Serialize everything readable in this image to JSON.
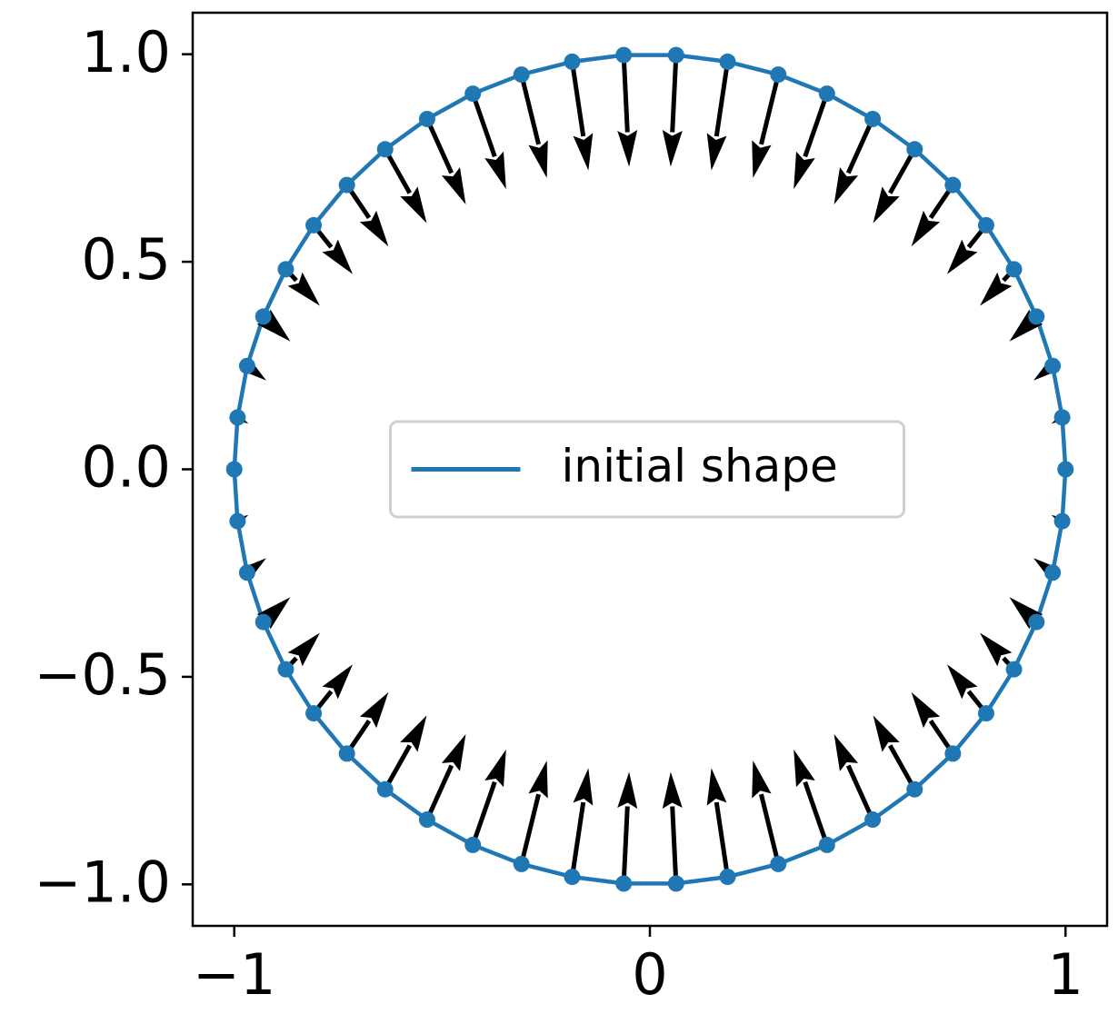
{
  "chart_data": {
    "type": "quiver",
    "series": [
      {
        "name": "initial shape",
        "color": "#1f77b4",
        "x": [
          1,
          0.992,
          0.969,
          0.93,
          0.876,
          0.809,
          0.729,
          0.637,
          0.536,
          0.426,
          0.309,
          0.187,
          0.063,
          -0.063,
          -0.187,
          -0.309,
          -0.426,
          -0.536,
          -0.637,
          -0.729,
          -0.809,
          -0.876,
          -0.93,
          -0.969,
          -0.992,
          -1,
          -0.992,
          -0.969,
          -0.93,
          -0.876,
          -0.809,
          -0.729,
          -0.637,
          -0.536,
          -0.426,
          -0.309,
          -0.187,
          -0.063,
          0.063,
          0.187,
          0.309,
          0.426,
          0.536,
          0.637,
          0.729,
          0.809,
          0.876,
          0.93,
          0.969,
          0.992
        ],
        "y": [
          0,
          0.125,
          0.249,
          0.368,
          0.482,
          0.588,
          0.685,
          0.771,
          0.844,
          0.905,
          0.951,
          0.982,
          0.998,
          0.998,
          0.982,
          0.951,
          0.905,
          0.844,
          0.771,
          0.685,
          0.588,
          0.482,
          0.368,
          0.249,
          0.125,
          0,
          -0.125,
          -0.249,
          -0.368,
          -0.482,
          -0.588,
          -0.685,
          -0.771,
          -0.844,
          -0.905,
          -0.951,
          -0.982,
          -0.998,
          -0.998,
          -0.982,
          -0.951,
          -0.905,
          -0.844,
          -0.771,
          -0.685,
          -0.588,
          -0.482,
          -0.368,
          -0.249,
          -0.125
        ]
      }
    ],
    "arrows": {
      "color": "#000000",
      "u": [
        -0.01,
        -0.026,
        -0.046,
        -0.065,
        -0.082,
        -0.094,
        -0.1,
        -0.1,
        -0.093,
        -0.08,
        -0.061,
        -0.039,
        -0.013,
        0.013,
        0.039,
        0.061,
        0.08,
        0.093,
        0.1,
        0.1,
        0.094,
        0.082,
        0.065,
        0.046,
        0.026,
        0.01,
        0.026,
        0.046,
        0.065,
        0.082,
        0.094,
        0.1,
        0.1,
        0.093,
        0.08,
        0.061,
        0.039,
        0.013,
        -0.013,
        -0.039,
        -0.061,
        -0.08,
        -0.093,
        -0.1,
        -0.1,
        -0.094,
        -0.082,
        -0.065,
        -0.046,
        -0.026
      ],
      "v": [
        0,
        -0.015,
        -0.035,
        -0.06,
        -0.088,
        -0.118,
        -0.148,
        -0.178,
        -0.206,
        -0.23,
        -0.249,
        -0.262,
        -0.269,
        -0.269,
        -0.262,
        -0.249,
        -0.23,
        -0.206,
        -0.178,
        -0.148,
        -0.118,
        -0.088,
        -0.06,
        -0.035,
        -0.015,
        0,
        0.015,
        0.035,
        0.06,
        0.088,
        0.118,
        0.148,
        0.178,
        0.206,
        0.23,
        0.249,
        0.262,
        0.269,
        0.269,
        0.262,
        0.249,
        0.23,
        0.206,
        0.178,
        0.148,
        0.118,
        0.088,
        0.06,
        0.035,
        0.015
      ]
    },
    "xlim": [
      -1.1,
      1.1
    ],
    "ylim": [
      -1.1,
      1.1
    ],
    "xticks": [
      {
        "value": -1,
        "label": "−1"
      },
      0,
      1
    ],
    "yticks": [
      {
        "value": -1.0,
        "label": "−1.0"
      },
      {
        "value": -0.5,
        "label": "−0.5"
      },
      {
        "value": 0,
        "label": "0.0"
      },
      0.5,
      {
        "value": 1.0,
        "label": "1.0"
      }
    ],
    "legend": "center"
  }
}
